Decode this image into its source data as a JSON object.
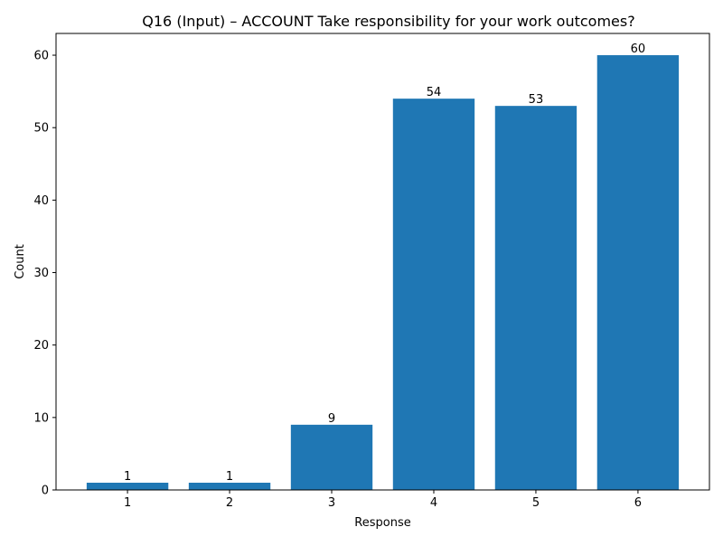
{
  "chart_data": {
    "type": "bar",
    "title": "Q16 (Input) – ACCOUNT Take responsibility for your work outcomes?",
    "xlabel": "Response",
    "ylabel": "Count",
    "categories": [
      "1",
      "2",
      "3",
      "4",
      "5",
      "6"
    ],
    "values": [
      1,
      1,
      9,
      54,
      53,
      60
    ],
    "data_labels": [
      "1",
      "1",
      "9",
      "54",
      "53",
      "60"
    ],
    "ylim": [
      0,
      63
    ],
    "yticks": [
      0,
      10,
      20,
      30,
      40,
      50,
      60
    ],
    "grid": false,
    "legend": "none",
    "bar_color": "#1f77b4"
  }
}
